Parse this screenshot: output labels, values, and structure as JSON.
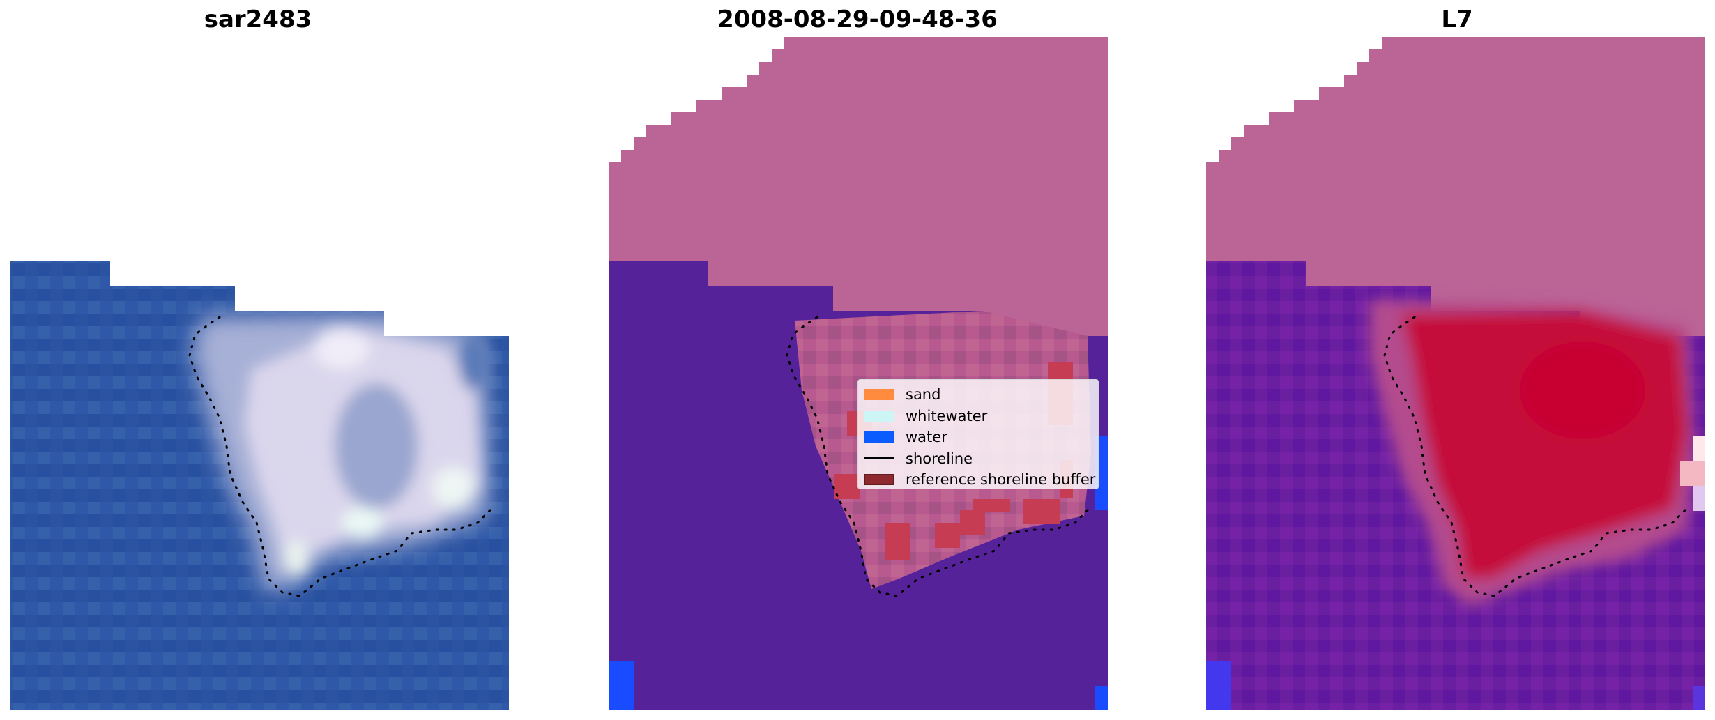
{
  "panels": [
    {
      "title": "sar2483"
    },
    {
      "title": "2008-08-29-09-48-36"
    },
    {
      "title": "L7"
    }
  ],
  "colors": {
    "sea_rgb": "#2a52a0",
    "island_white": "#dcd8ec",
    "class_land": "#bb6496",
    "class_water": "#56229a",
    "class_bright_water": "#1a4cff",
    "index_land": "#c40f3c",
    "index_water": "#6a1da0"
  },
  "legend": {
    "items": [
      {
        "label": "sand",
        "color": "#ff8c3e"
      },
      {
        "label": "whitewater",
        "color": "#cdf5f5"
      },
      {
        "label": "water",
        "color": "#0a5cff"
      },
      {
        "label": "shoreline",
        "color": "#000000"
      },
      {
        "label": "reference shoreline buffer",
        "color": "#8e2a2f"
      }
    ]
  }
}
